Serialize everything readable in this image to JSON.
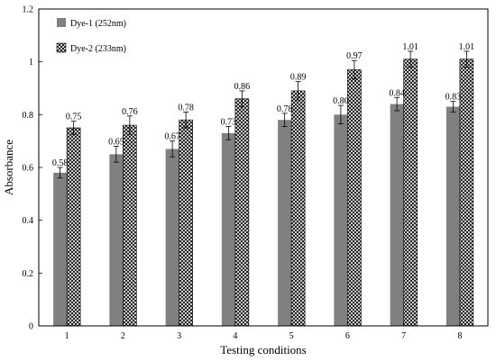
{
  "chart_data": {
    "type": "bar",
    "xlabel": "Testing conditions",
    "ylabel": "Absorbance",
    "categories": [
      "1",
      "2",
      "3",
      "4",
      "5",
      "6",
      "7",
      "8"
    ],
    "ylim": [
      0,
      1.2
    ],
    "yticks": [
      {
        "value": 0,
        "label": "0"
      },
      {
        "value": 0.2,
        "label": "0.2"
      },
      {
        "value": 0.4,
        "label": "0.4"
      },
      {
        "value": 0.6,
        "label": "0.6"
      },
      {
        "value": 0.8,
        "label": "0.8"
      },
      {
        "value": 1,
        "label": "1"
      },
      {
        "value": 1.2,
        "label": "1.2"
      }
    ],
    "grid": false,
    "legend_position": "top-left",
    "series": [
      {
        "name": "Dye-1 (252nm)",
        "color": "#808080",
        "pattern": "solid",
        "values": [
          0.58,
          0.65,
          0.67,
          0.73,
          0.78,
          0.8,
          0.84,
          0.83
        ],
        "labels": [
          "0.58",
          "0.65",
          "0.67",
          "0.73",
          "0.78",
          "0.80",
          "0.84",
          "0.83"
        ],
        "errors": [
          0.02,
          0.03,
          0.03,
          0.025,
          0.025,
          0.035,
          0.025,
          0.02
        ]
      },
      {
        "name": "Dye-2 (233nm)",
        "color": "#000000",
        "pattern": "crosshatch",
        "values": [
          0.75,
          0.76,
          0.78,
          0.86,
          0.89,
          0.97,
          1.01,
          1.01
        ],
        "labels": [
          "0.75",
          "0.76",
          "0.78",
          "0.86",
          "0.89",
          "0.97",
          "1.01",
          "1.01"
        ],
        "errors": [
          0.025,
          0.035,
          0.03,
          0.03,
          0.035,
          0.035,
          0.03,
          0.03
        ]
      }
    ]
  }
}
